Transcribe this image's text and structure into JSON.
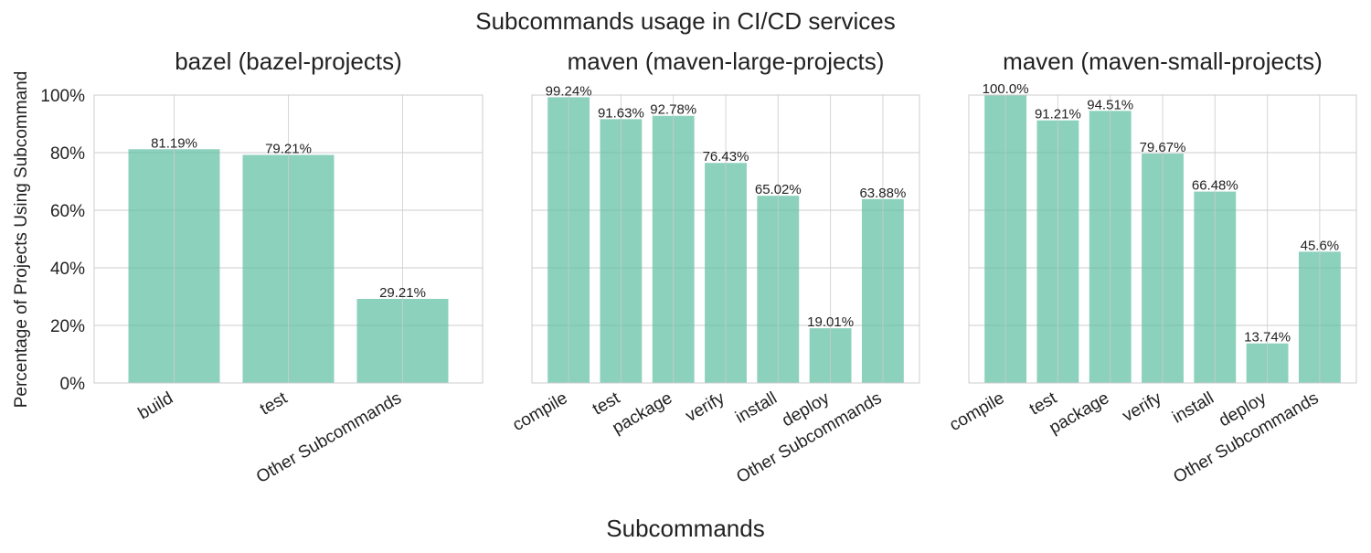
{
  "figure": {
    "title": "Subcommands usage in CI/CD services",
    "xlabel": "Subcommands",
    "ylabel": "Percentage of Projects Using Subcommand",
    "bar_color": "#66c2a5"
  },
  "chart_data": [
    {
      "type": "bar",
      "title": "bazel (bazel-projects)",
      "categories": [
        "build",
        "test",
        "Other Subcommands"
      ],
      "values": [
        81.19,
        79.21,
        29.21
      ],
      "value_labels": [
        "81.19%",
        "79.21%",
        "29.21%"
      ],
      "ylim": [
        0,
        100
      ],
      "yticks": [
        0,
        20,
        40,
        60,
        80,
        100
      ],
      "ytick_labels": [
        "0%",
        "20%",
        "40%",
        "60%",
        "80%",
        "100%"
      ],
      "grid": true
    },
    {
      "type": "bar",
      "title": "maven (maven-large-projects)",
      "categories": [
        "compile",
        "test",
        "package",
        "verify",
        "install",
        "deploy",
        "Other Subcommands"
      ],
      "values": [
        99.24,
        91.63,
        92.78,
        76.43,
        65.02,
        19.01,
        63.88
      ],
      "value_labels": [
        "99.24%",
        "91.63%",
        "92.78%",
        "76.43%",
        "65.02%",
        "19.01%",
        "63.88%"
      ],
      "ylim": [
        0,
        100
      ],
      "yticks": [
        0,
        20,
        40,
        60,
        80,
        100
      ],
      "grid": true
    },
    {
      "type": "bar",
      "title": "maven (maven-small-projects)",
      "categories": [
        "compile",
        "test",
        "package",
        "verify",
        "install",
        "deploy",
        "Other Subcommands"
      ],
      "values": [
        100.0,
        91.21,
        94.51,
        79.67,
        66.48,
        13.74,
        45.6
      ],
      "value_labels": [
        "100.0%",
        "91.21%",
        "94.51%",
        "79.67%",
        "66.48%",
        "13.74%",
        "45.6%"
      ],
      "ylim": [
        0,
        100
      ],
      "yticks": [
        0,
        20,
        40,
        60,
        80,
        100
      ],
      "grid": true
    }
  ]
}
